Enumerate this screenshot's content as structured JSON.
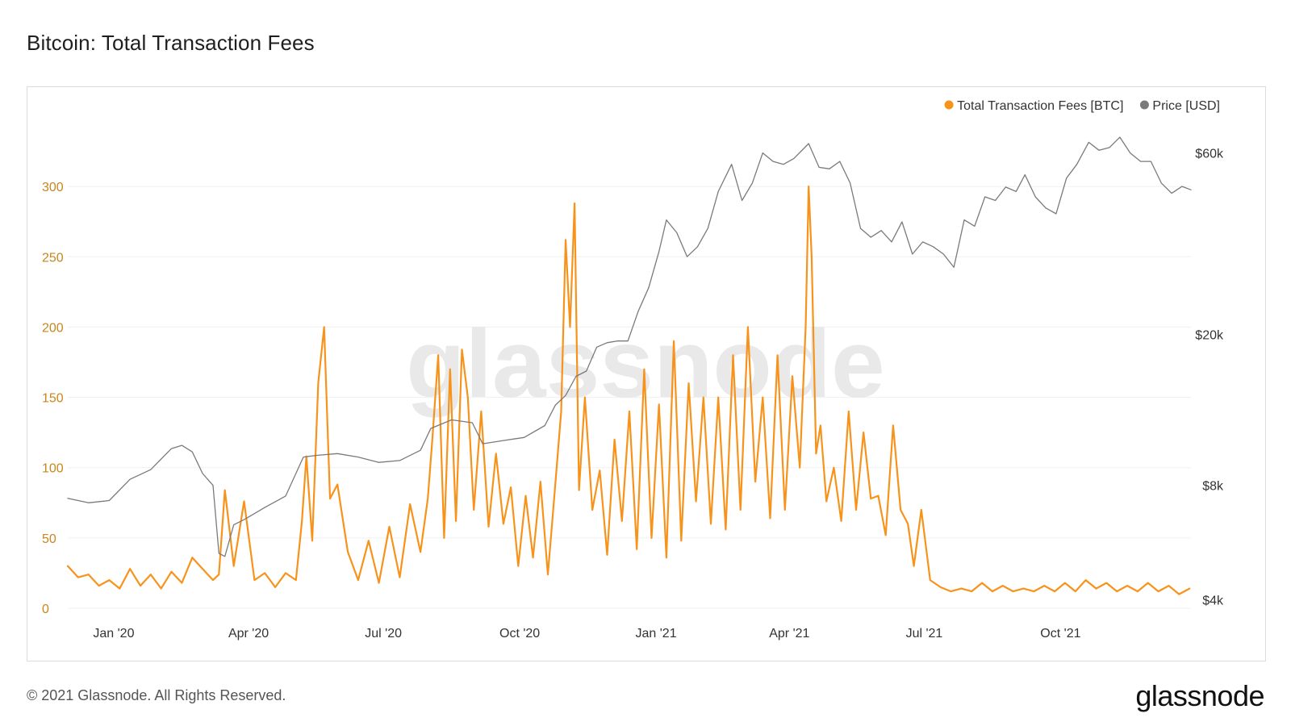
{
  "page": {
    "title": "Bitcoin: Total Transaction Fees",
    "copyright": "© 2021 Glassnode. All Rights Reserved.",
    "logo": "glassnode",
    "watermark": "glassnode"
  },
  "colors": {
    "fees": "#f7931a",
    "price": "#7a7a7a",
    "left_axis_text": "#c8861c",
    "axis_text": "#333333",
    "grid": "#f0f0f0"
  },
  "chart_data": {
    "type": "line",
    "title": "Bitcoin: Total Transaction Fees",
    "legend": {
      "placement": "top-right",
      "items": [
        {
          "label": "Total Transaction Fees [BTC]",
          "color": "#f7931a"
        },
        {
          "label": "Price [USD]",
          "color": "#7a7a7a"
        }
      ]
    },
    "x_range": [
      "2019-12-01",
      "2021-12-28"
    ],
    "x_ticks": [
      {
        "date": "2020-01-01",
        "label": "Jan '20"
      },
      {
        "date": "2020-04-01",
        "label": "Apr '20"
      },
      {
        "date": "2020-07-01",
        "label": "Jul '20"
      },
      {
        "date": "2020-10-01",
        "label": "Oct '20"
      },
      {
        "date": "2021-01-01",
        "label": "Jan '21"
      },
      {
        "date": "2021-04-01",
        "label": "Apr '21"
      },
      {
        "date": "2021-07-01",
        "label": "Jul '21"
      },
      {
        "date": "2021-10-01",
        "label": "Oct '21"
      }
    ],
    "y_left": {
      "ylim": [
        0,
        350
      ],
      "ticks": [
        0,
        50,
        100,
        150,
        200,
        250,
        300
      ]
    },
    "y_right": {
      "scale": "log",
      "ylim": [
        3800,
        75000
      ],
      "ticks": [
        {
          "value": 4000,
          "label": "$4k"
        },
        {
          "value": 8000,
          "label": "$8k"
        },
        {
          "value": 20000,
          "label": "$20k"
        },
        {
          "value": 60000,
          "label": "$60k"
        }
      ]
    },
    "grid": true,
    "series": [
      {
        "name": "Total Transaction Fees [BTC]",
        "axis": "left",
        "x": [
          "2019-12-01",
          "2019-12-08",
          "2019-12-15",
          "2019-12-22",
          "2019-12-29",
          "2020-01-05",
          "2020-01-12",
          "2020-01-19",
          "2020-01-26",
          "2020-02-02",
          "2020-02-09",
          "2020-02-16",
          "2020-02-23",
          "2020-03-01",
          "2020-03-08",
          "2020-03-12",
          "2020-03-16",
          "2020-03-22",
          "2020-03-29",
          "2020-04-05",
          "2020-04-12",
          "2020-04-19",
          "2020-04-26",
          "2020-05-03",
          "2020-05-07",
          "2020-05-10",
          "2020-05-14",
          "2020-05-18",
          "2020-05-22",
          "2020-05-26",
          "2020-05-31",
          "2020-06-07",
          "2020-06-14",
          "2020-06-21",
          "2020-06-28",
          "2020-07-05",
          "2020-07-12",
          "2020-07-19",
          "2020-07-26",
          "2020-07-31",
          "2020-08-03",
          "2020-08-07",
          "2020-08-11",
          "2020-08-15",
          "2020-08-19",
          "2020-08-23",
          "2020-08-27",
          "2020-08-31",
          "2020-09-05",
          "2020-09-10",
          "2020-09-15",
          "2020-09-20",
          "2020-09-25",
          "2020-09-30",
          "2020-10-05",
          "2020-10-10",
          "2020-10-15",
          "2020-10-20",
          "2020-10-25",
          "2020-10-29",
          "2020-11-01",
          "2020-11-04",
          "2020-11-07",
          "2020-11-10",
          "2020-11-14",
          "2020-11-19",
          "2020-11-24",
          "2020-11-29",
          "2020-12-04",
          "2020-12-09",
          "2020-12-14",
          "2020-12-19",
          "2020-12-24",
          "2020-12-29",
          "2021-01-03",
          "2021-01-08",
          "2021-01-13",
          "2021-01-18",
          "2021-01-23",
          "2021-01-28",
          "2021-02-02",
          "2021-02-07",
          "2021-02-12",
          "2021-02-17",
          "2021-02-22",
          "2021-02-27",
          "2021-03-04",
          "2021-03-09",
          "2021-03-14",
          "2021-03-19",
          "2021-03-24",
          "2021-03-29",
          "2021-04-03",
          "2021-04-08",
          "2021-04-12",
          "2021-04-14",
          "2021-04-16",
          "2021-04-19",
          "2021-04-22",
          "2021-04-26",
          "2021-05-01",
          "2021-05-06",
          "2021-05-11",
          "2021-05-16",
          "2021-05-21",
          "2021-05-26",
          "2021-05-31",
          "2021-06-05",
          "2021-06-10",
          "2021-06-15",
          "2021-06-20",
          "2021-06-24",
          "2021-06-29",
          "2021-07-05",
          "2021-07-12",
          "2021-07-19",
          "2021-07-26",
          "2021-08-02",
          "2021-08-09",
          "2021-08-16",
          "2021-08-23",
          "2021-08-30",
          "2021-09-06",
          "2021-09-13",
          "2021-09-20",
          "2021-09-27",
          "2021-10-04",
          "2021-10-11",
          "2021-10-18",
          "2021-10-25",
          "2021-11-01",
          "2021-11-08",
          "2021-11-15",
          "2021-11-22",
          "2021-11-29",
          "2021-12-06",
          "2021-12-13",
          "2021-12-20",
          "2021-12-27"
        ],
        "values": [
          30,
          22,
          24,
          16,
          20,
          14,
          28,
          16,
          24,
          14,
          26,
          18,
          36,
          28,
          20,
          24,
          84,
          30,
          76,
          20,
          25,
          15,
          25,
          20,
          62,
          108,
          48,
          160,
          200,
          78,
          88,
          40,
          20,
          48,
          18,
          58,
          22,
          74,
          40,
          78,
          120,
          180,
          50,
          170,
          62,
          184,
          150,
          70,
          140,
          58,
          110,
          60,
          86,
          30,
          80,
          36,
          90,
          24,
          88,
          140,
          262,
          200,
          288,
          84,
          150,
          70,
          98,
          38,
          120,
          62,
          140,
          42,
          170,
          50,
          145,
          36,
          190,
          48,
          160,
          76,
          150,
          60,
          150,
          56,
          180,
          70,
          200,
          90,
          150,
          64,
          180,
          70,
          165,
          100,
          200,
          300,
          250,
          110,
          130,
          76,
          100,
          62,
          140,
          70,
          125,
          78,
          80,
          52,
          130,
          70,
          60,
          30,
          70,
          20,
          15,
          12,
          14,
          12,
          18,
          12,
          16,
          12,
          14,
          12,
          16,
          12,
          18,
          12,
          20,
          14,
          18,
          12,
          16,
          12,
          18,
          12,
          16,
          10,
          14
        ]
      },
      {
        "name": "Price [USD]",
        "axis": "right",
        "x": [
          "2019-12-01",
          "2019-12-15",
          "2019-12-29",
          "2020-01-12",
          "2020-01-26",
          "2020-02-09",
          "2020-02-16",
          "2020-02-23",
          "2020-03-01",
          "2020-03-08",
          "2020-03-12",
          "2020-03-16",
          "2020-03-22",
          "2020-03-29",
          "2020-04-12",
          "2020-04-26",
          "2020-05-08",
          "2020-05-17",
          "2020-05-31",
          "2020-06-14",
          "2020-06-28",
          "2020-07-12",
          "2020-07-26",
          "2020-08-02",
          "2020-08-16",
          "2020-08-30",
          "2020-09-06",
          "2020-09-20",
          "2020-10-04",
          "2020-10-18",
          "2020-10-25",
          "2020-11-01",
          "2020-11-08",
          "2020-11-15",
          "2020-11-22",
          "2020-11-29",
          "2020-12-06",
          "2020-12-13",
          "2020-12-20",
          "2020-12-27",
          "2021-01-03",
          "2021-01-08",
          "2021-01-15",
          "2021-01-22",
          "2021-01-29",
          "2021-02-05",
          "2021-02-12",
          "2021-02-21",
          "2021-02-28",
          "2021-03-07",
          "2021-03-14",
          "2021-03-21",
          "2021-03-28",
          "2021-04-04",
          "2021-04-14",
          "2021-04-21",
          "2021-04-28",
          "2021-05-05",
          "2021-05-12",
          "2021-05-19",
          "2021-05-26",
          "2021-06-02",
          "2021-06-09",
          "2021-06-16",
          "2021-06-23",
          "2021-06-30",
          "2021-07-07",
          "2021-07-14",
          "2021-07-21",
          "2021-07-28",
          "2021-08-04",
          "2021-08-11",
          "2021-08-18",
          "2021-08-25",
          "2021-09-01",
          "2021-09-07",
          "2021-09-14",
          "2021-09-21",
          "2021-09-28",
          "2021-10-05",
          "2021-10-12",
          "2021-10-20",
          "2021-10-27",
          "2021-11-03",
          "2021-11-10",
          "2021-11-17",
          "2021-11-24",
          "2021-12-01",
          "2021-12-08",
          "2021-12-15",
          "2021-12-22",
          "2021-12-28"
        ],
        "values": [
          7400,
          7200,
          7300,
          8300,
          8800,
          10000,
          10200,
          9800,
          8600,
          8000,
          5300,
          5200,
          6300,
          6500,
          7000,
          7500,
          9500,
          9600,
          9700,
          9500,
          9200,
          9300,
          9900,
          11300,
          11900,
          11700,
          10300,
          10500,
          10700,
          11500,
          13000,
          13800,
          15500,
          16000,
          18500,
          19000,
          19200,
          19200,
          23000,
          26500,
          33000,
          40000,
          37000,
          32000,
          34000,
          38000,
          47500,
          56000,
          45000,
          50000,
          60000,
          57000,
          56000,
          58000,
          63500,
          55000,
          54500,
          57000,
          50000,
          38000,
          36000,
          37500,
          35000,
          39500,
          32500,
          35000,
          34000,
          32500,
          30000,
          40000,
          38500,
          46000,
          45000,
          48800,
          47500,
          52600,
          46000,
          43000,
          41500,
          51500,
          56000,
          64000,
          61000,
          62000,
          66000,
          60000,
          57000,
          57000,
          50000,
          47000,
          49000,
          48000
        ]
      }
    ]
  }
}
